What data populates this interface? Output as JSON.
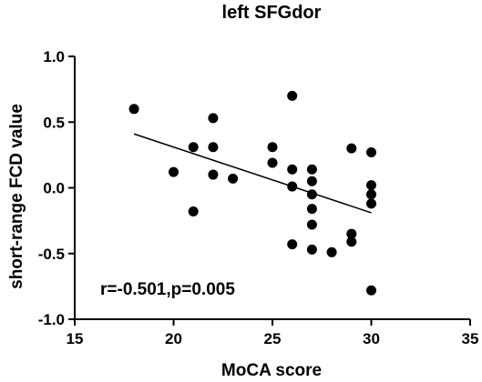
{
  "chart_data": {
    "type": "scatter",
    "title": "left SFGdor",
    "xlabel": "MoCA score",
    "ylabel": "short-range FCD value",
    "xlim": [
      15,
      35
    ],
    "ylim": [
      -1.0,
      1.0
    ],
    "x_ticks": [
      15,
      20,
      25,
      30,
      35
    ],
    "y_ticks": [
      -1.0,
      -0.5,
      0.0,
      0.5,
      1.0
    ],
    "x_tick_labels": [
      "15",
      "20",
      "25",
      "30",
      "35"
    ],
    "y_tick_labels": [
      "-1.0",
      "-0.5",
      "0.0",
      "0.5",
      "1.0"
    ],
    "grid": false,
    "annotation": "r=-0.501,p=0.005",
    "points": [
      {
        "x": 18,
        "y": 0.6
      },
      {
        "x": 20,
        "y": 0.12
      },
      {
        "x": 21,
        "y": 0.31
      },
      {
        "x": 21,
        "y": -0.18
      },
      {
        "x": 22,
        "y": 0.53
      },
      {
        "x": 22,
        "y": 0.31
      },
      {
        "x": 22,
        "y": 0.1
      },
      {
        "x": 23,
        "y": 0.07
      },
      {
        "x": 25,
        "y": 0.31
      },
      {
        "x": 25,
        "y": 0.19
      },
      {
        "x": 26,
        "y": 0.7
      },
      {
        "x": 26,
        "y": 0.14
      },
      {
        "x": 26,
        "y": 0.01
      },
      {
        "x": 26,
        "y": -0.43
      },
      {
        "x": 27,
        "y": 0.14
      },
      {
        "x": 27,
        "y": 0.05
      },
      {
        "x": 27,
        "y": -0.05
      },
      {
        "x": 27,
        "y": -0.16
      },
      {
        "x": 27,
        "y": -0.28
      },
      {
        "x": 27,
        "y": -0.47
      },
      {
        "x": 28,
        "y": -0.49
      },
      {
        "x": 29,
        "y": 0.3
      },
      {
        "x": 29,
        "y": -0.35
      },
      {
        "x": 29,
        "y": -0.41
      },
      {
        "x": 30,
        "y": 0.27
      },
      {
        "x": 30,
        "y": 0.02
      },
      {
        "x": 30,
        "y": -0.05
      },
      {
        "x": 30,
        "y": -0.12
      },
      {
        "x": 30,
        "y": -0.78
      }
    ],
    "fit_line": {
      "x": [
        18,
        30
      ],
      "y": [
        0.41,
        -0.19
      ]
    },
    "colors": {
      "points": "#000000",
      "line": "#000000",
      "axes": "#000000"
    }
  }
}
